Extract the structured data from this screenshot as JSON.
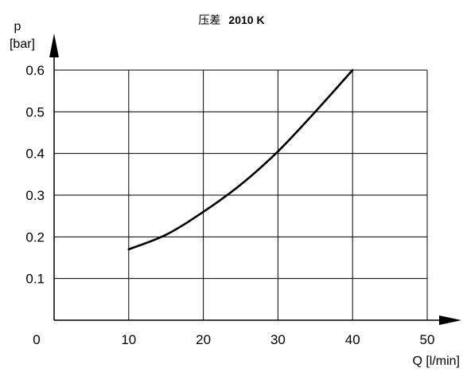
{
  "chart_data": {
    "type": "line",
    "title_prefix": "压差",
    "title_main": "2010 K",
    "ylabel_symbol": "p",
    "ylabel_unit": "[bar]",
    "xlabel": "Q [l/min]",
    "xlim": [
      0,
      50
    ],
    "ylim": [
      0,
      0.6
    ],
    "x_ticks": [
      0,
      10,
      20,
      30,
      40,
      50
    ],
    "y_ticks": [
      0.1,
      0.2,
      0.3,
      0.4,
      0.5,
      0.6
    ],
    "x_tick_labels": [
      "0",
      "10",
      "20",
      "30",
      "40",
      "50"
    ],
    "y_tick_labels": [
      "0.1",
      "0.2",
      "0.3",
      "0.4",
      "0.5",
      "0.6"
    ],
    "grid": true,
    "series": [
      {
        "x": [
          10,
          15,
          20,
          25,
          30,
          35,
          40
        ],
        "y": [
          0.17,
          0.205,
          0.26,
          0.325,
          0.405,
          0.5,
          0.6
        ]
      }
    ]
  }
}
